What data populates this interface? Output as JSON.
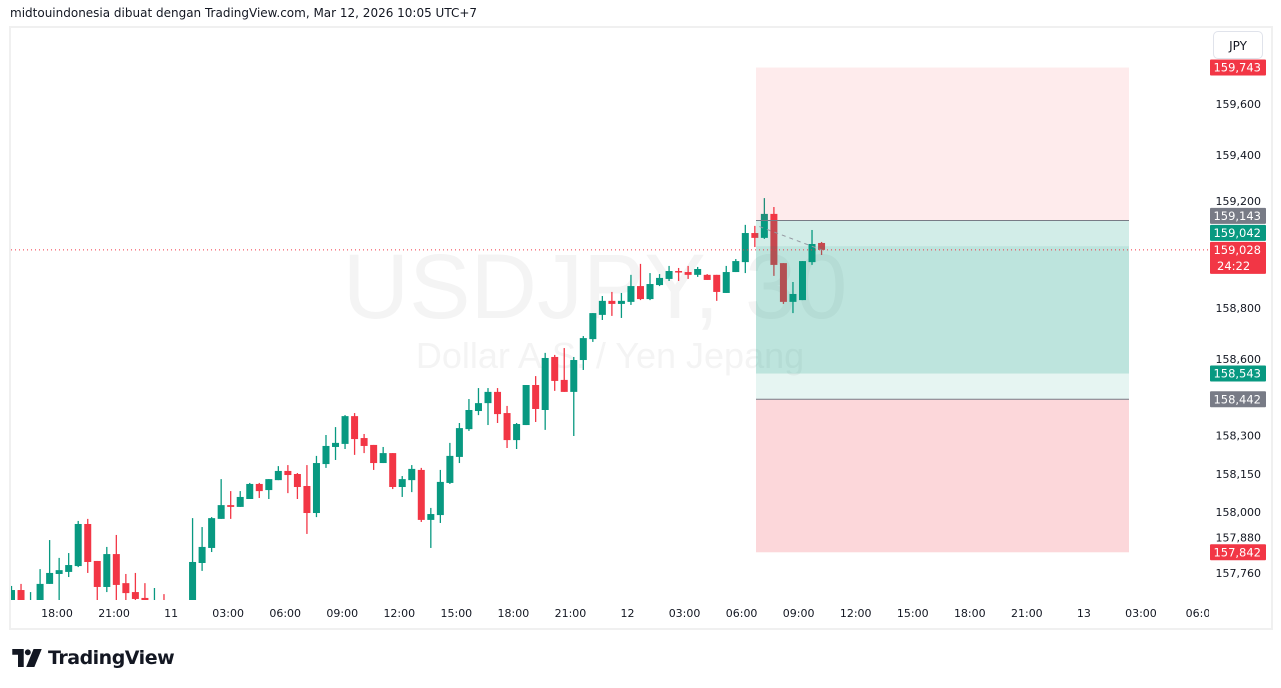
{
  "header": {
    "text": "midtouindonesia dibuat dengan TradingView.com, Mar 12, 2026 10:05 UTC+7"
  },
  "currency_button": "JPY",
  "watermark": {
    "symbol": "USDJPY, 30",
    "description": "Dollar A.S. / Yen Jepang"
  },
  "footer": {
    "logo": "TradingView"
  },
  "colors": {
    "up": "#089981",
    "down": "#f23645",
    "label_gray": "#787b86",
    "price_line": "#f23645"
  },
  "chart_data": {
    "type": "candlestick",
    "symbol": "USDJPY",
    "interval": "30",
    "ohlc": [
      [
        157.65,
        157.71,
        157.62,
        157.694
      ],
      [
        157.694,
        157.718,
        157.62,
        157.65
      ],
      [
        157.6,
        157.686,
        157.58,
        157.64
      ],
      [
        157.64,
        157.776,
        157.62,
        157.718
      ],
      [
        157.718,
        157.89,
        157.718,
        157.761
      ],
      [
        157.757,
        157.82,
        157.65,
        157.772
      ],
      [
        157.765,
        157.839,
        157.745,
        157.792
      ],
      [
        157.788,
        157.965,
        157.784,
        157.953
      ],
      [
        157.953,
        157.973,
        157.761,
        157.804
      ],
      [
        157.808,
        157.808,
        157.64,
        157.706
      ],
      [
        157.706,
        157.863,
        157.686,
        157.835
      ],
      [
        157.835,
        157.91,
        157.64,
        157.714
      ],
      [
        157.721,
        157.757,
        157.64,
        157.682
      ],
      [
        157.686,
        157.761,
        157.64,
        157.659
      ],
      [
        157.663,
        157.721,
        157.62,
        157.64
      ],
      [
        157.6,
        157.702,
        157.58,
        157.63
      ],
      [
        157.64,
        157.678,
        157.59,
        157.62
      ],
      [
        157.6,
        157.64,
        157.56,
        157.62
      ],
      [
        157.62,
        157.645,
        157.57,
        157.6
      ],
      [
        157.63,
        157.976,
        157.6,
        157.804
      ],
      [
        157.8,
        157.941,
        157.769,
        157.863
      ],
      [
        157.859,
        157.98,
        157.843,
        157.976
      ],
      [
        157.973,
        158.129,
        157.973,
        158.027
      ],
      [
        158.027,
        158.082,
        157.973,
        158.02
      ],
      [
        158.02,
        158.082,
        158.02,
        158.059
      ],
      [
        158.051,
        158.114,
        158.051,
        158.11
      ],
      [
        158.11,
        158.114,
        158.055,
        158.082
      ],
      [
        158.086,
        158.129,
        158.051,
        158.129
      ],
      [
        158.125,
        158.18,
        158.125,
        158.161
      ],
      [
        158.161,
        158.184,
        158.074,
        158.145
      ],
      [
        158.149,
        158.153,
        158.051,
        158.098
      ],
      [
        158.102,
        158.184,
        157.914,
        157.996
      ],
      [
        157.996,
        158.22,
        157.98,
        158.192
      ],
      [
        158.188,
        158.302,
        158.173,
        158.259
      ],
      [
        158.255,
        158.333,
        158.204,
        158.271
      ],
      [
        158.267,
        158.38,
        158.247,
        158.376
      ],
      [
        158.376,
        158.388,
        158.224,
        158.286
      ],
      [
        158.29,
        158.306,
        158.231,
        158.259
      ],
      [
        158.263,
        158.263,
        158.165,
        158.192
      ],
      [
        158.192,
        158.255,
        158.192,
        158.231
      ],
      [
        158.231,
        158.231,
        158.09,
        158.098
      ],
      [
        158.098,
        158.141,
        158.059,
        158.129
      ],
      [
        158.125,
        158.184,
        158.078,
        158.169
      ],
      [
        158.165,
        158.173,
        157.961,
        157.969
      ],
      [
        157.969,
        158.016,
        157.859,
        157.992
      ],
      [
        157.988,
        158.165,
        157.957,
        158.118
      ],
      [
        158.114,
        158.271,
        158.11,
        158.22
      ],
      [
        158.216,
        158.349,
        158.192,
        158.329
      ],
      [
        158.325,
        158.443,
        158.318,
        158.4
      ],
      [
        158.396,
        158.486,
        158.38,
        158.427
      ],
      [
        158.427,
        158.486,
        158.341,
        158.471
      ],
      [
        158.471,
        158.486,
        158.349,
        158.384
      ],
      [
        158.388,
        158.416,
        158.251,
        158.282
      ],
      [
        158.282,
        158.349,
        158.247,
        158.345
      ],
      [
        158.341,
        158.498,
        158.341,
        158.498
      ],
      [
        158.498,
        158.533,
        158.353,
        158.404
      ],
      [
        158.4,
        158.624,
        158.322,
        158.604
      ],
      [
        158.608,
        158.616,
        158.475,
        158.514
      ],
      [
        158.518,
        158.643,
        158.471,
        158.471
      ],
      [
        158.471,
        158.608,
        158.298,
        158.596
      ],
      [
        158.596,
        158.69,
        158.557,
        158.682
      ],
      [
        158.678,
        158.78,
        158.667,
        158.78
      ],
      [
        158.773,
        158.847,
        158.753,
        158.828
      ],
      [
        158.828,
        158.863,
        158.769,
        158.816
      ],
      [
        158.816,
        158.859,
        158.761,
        158.828
      ],
      [
        158.824,
        158.93,
        158.812,
        158.886
      ],
      [
        158.886,
        158.973,
        158.831,
        158.835
      ],
      [
        158.835,
        158.937,
        158.831,
        158.894
      ],
      [
        158.89,
        158.933,
        158.886,
        158.918
      ],
      [
        158.914,
        158.965,
        158.906,
        158.945
      ],
      [
        158.945,
        158.957,
        158.906,
        158.941
      ],
      [
        158.941,
        158.965,
        158.914,
        158.93
      ],
      [
        158.93,
        158.961,
        158.922,
        158.953
      ],
      [
        158.93,
        158.933,
        158.91,
        158.91
      ],
      [
        158.93,
        158.93,
        158.828,
        158.863
      ],
      [
        158.859,
        158.965,
        158.859,
        158.941
      ],
      [
        158.941,
        158.992,
        158.941,
        158.984
      ],
      [
        158.98,
        159.126,
        158.937,
        159.094
      ],
      [
        159.094,
        159.122,
        159.039,
        159.075
      ],
      [
        159.075,
        159.231,
        159.071,
        159.169
      ],
      [
        159.169,
        159.196,
        158.926,
        158.969
      ],
      [
        158.976,
        158.976,
        158.816,
        158.824
      ],
      [
        158.824,
        158.902,
        158.78,
        158.855
      ],
      [
        158.831,
        158.984,
        158.831,
        158.984
      ],
      [
        158.98,
        159.106,
        158.969,
        159.051
      ],
      [
        159.055,
        159.059,
        159.008,
        159.028
      ]
    ],
    "x_tick_labels": [
      "18:00",
      "21:00",
      "11",
      "03:00",
      "06:00",
      "09:00",
      "12:00",
      "15:00",
      "18:00",
      "21:00",
      "12",
      "03:00",
      "06:00",
      "09:00",
      "12:00",
      "15:00",
      "18:00",
      "21:00",
      "13",
      "03:00",
      "06:0"
    ],
    "y_ticks": [
      {
        "value": 159.6,
        "label": "159,600"
      },
      {
        "value": 159.4,
        "label": "159,400"
      },
      {
        "value": 159.2,
        "label": "159,200"
      },
      {
        "value": 158.8,
        "label": "158,800"
      },
      {
        "value": 158.6,
        "label": "158,600"
      },
      {
        "value": 158.3,
        "label": "158,300"
      },
      {
        "value": 158.15,
        "label": "158,150"
      },
      {
        "value": 158.0,
        "label": "158,000"
      },
      {
        "value": 157.88,
        "label": "157,880"
      },
      {
        "value": 157.76,
        "label": "157,760"
      }
    ],
    "ylim": [
      157.655,
      160.0
    ],
    "current_price": {
      "value": 159.028,
      "label": "159,028",
      "countdown": "24:22"
    },
    "positions": [
      {
        "type": "short",
        "stop": {
          "value": 159.743,
          "label": "159,743"
        },
        "entry": {
          "value": 159.143,
          "label": "159,143"
        },
        "target": {
          "value": 158.543,
          "label": "158,543"
        }
      },
      {
        "type": "long",
        "target": {
          "value": 159.042,
          "label": "159,042"
        },
        "entry": {
          "value": 158.442,
          "label": "158,442"
        },
        "stop": {
          "value": 157.842,
          "label": "157,842"
        }
      }
    ]
  }
}
